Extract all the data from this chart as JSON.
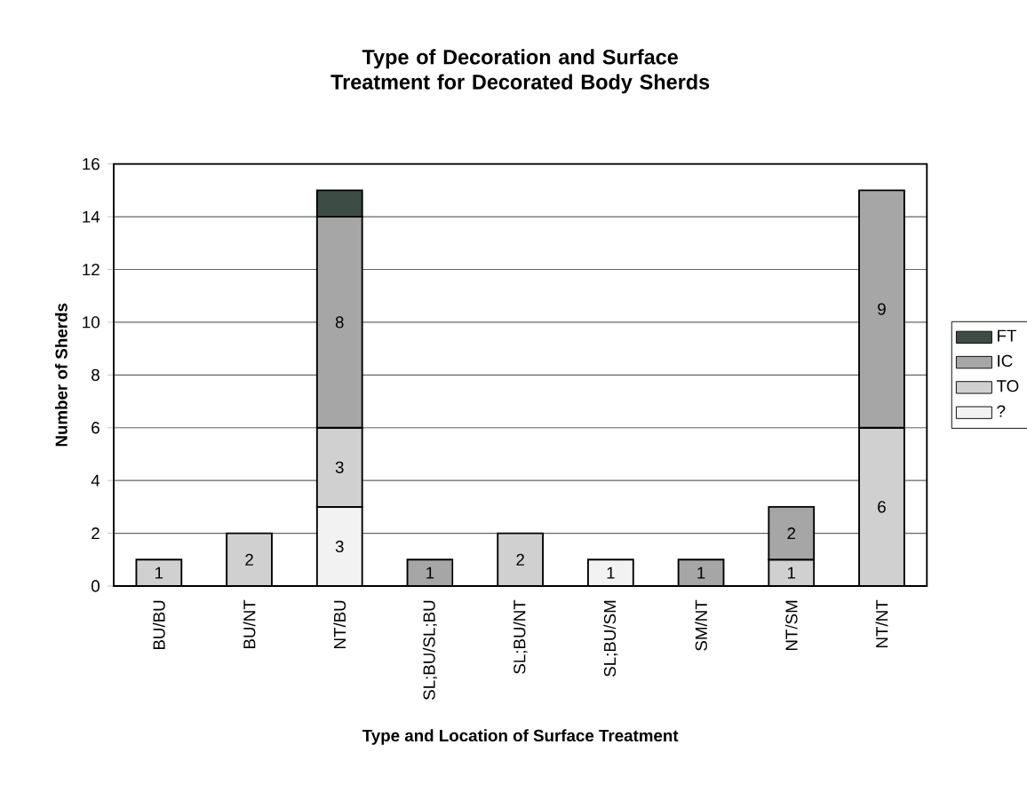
{
  "chart_data": {
    "type": "bar",
    "stacked": true,
    "title": "Type of Decoration and Surface Treatment for Decorated Body Sherds",
    "xlabel": "Type and Location of Surface Treatment",
    "ylabel": "Number of Sherds",
    "categories": [
      "BU/BU",
      "BU/NT",
      "NT/BU",
      "SL;BU/SL;BU",
      "SL;BU/NT",
      "SL;BU/SM",
      "SM/NT",
      "NT/SM",
      "NT/NT"
    ],
    "series": [
      {
        "name": "?",
        "color": "#f2f2f2",
        "values": [
          0,
          0,
          3,
          0,
          0,
          1,
          0,
          0,
          0
        ],
        "value_labels": [
          null,
          null,
          "3",
          null,
          null,
          "1",
          null,
          null,
          null
        ]
      },
      {
        "name": "TO",
        "color": "#d0d0d0",
        "values": [
          1,
          2,
          3,
          0,
          2,
          0,
          0,
          1,
          6
        ],
        "value_labels": [
          "1",
          "2",
          "3",
          null,
          "2",
          null,
          null,
          "1",
          "6"
        ]
      },
      {
        "name": "IC",
        "color": "#a6a6a6",
        "values": [
          0,
          0,
          8,
          1,
          0,
          0,
          1,
          2,
          9
        ],
        "value_labels": [
          null,
          null,
          "8",
          "1",
          null,
          null,
          "1",
          "2",
          "9"
        ]
      },
      {
        "name": "FT",
        "color": "#3d4d45",
        "values": [
          0,
          0,
          1,
          0,
          0,
          0,
          0,
          0,
          0
        ],
        "value_labels": [
          null,
          null,
          null,
          null,
          null,
          null,
          null,
          null,
          null
        ]
      }
    ],
    "ylim": [
      0,
      16
    ],
    "yticks": [
      0,
      2,
      4,
      6,
      8,
      10,
      12,
      14,
      16
    ],
    "grid": "y",
    "legend": "right"
  }
}
